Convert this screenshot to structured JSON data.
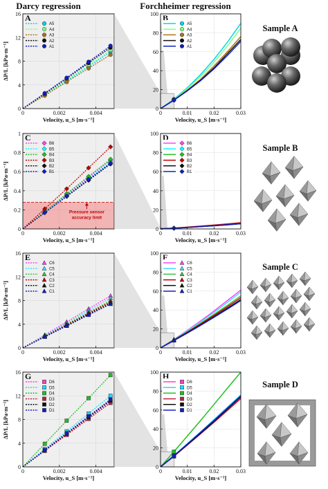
{
  "figure": {
    "col_titles": [
      "Darcy regression",
      "Forchheimer regression"
    ]
  },
  "chart_data": [
    {
      "id": "A",
      "type": "line",
      "panel_label": "A",
      "xlabel": "Velocity, u_S [m·s⁻¹]",
      "ylabel": "ΔP/L [kPa·m⁻¹]",
      "xlim": [
        0,
        0.005
      ],
      "ylim": [
        0,
        16
      ],
      "xticks": [
        0,
        0.002,
        0.004
      ],
      "xtick_labels": [
        "0",
        "0.002",
        "0.004"
      ],
      "yticks": [
        0,
        4,
        8,
        12,
        16
      ],
      "legend": [
        "A5",
        "A4",
        "A3",
        "A2",
        "A1"
      ],
      "x": [
        0,
        0.0012,
        0.0024,
        0.0036,
        0.0048
      ],
      "series": [
        {
          "name": "A5",
          "values": [
            0,
            2.3,
            4.7,
            7.1,
            9.6
          ]
        },
        {
          "name": "A4",
          "values": [
            0,
            2.4,
            4.9,
            7.3,
            9.9
          ]
        },
        {
          "name": "A3",
          "values": [
            0,
            2.2,
            4.5,
            6.8,
            9.1
          ]
        },
        {
          "name": "A2",
          "values": [
            0,
            2.5,
            5.1,
            7.7,
            10.3
          ]
        },
        {
          "name": "A1",
          "values": [
            0,
            2.6,
            5.2,
            7.9,
            10.6
          ]
        }
      ]
    },
    {
      "id": "B",
      "type": "line",
      "panel_label": "B",
      "xlabel": "Velocity, u_S [m·s⁻¹]",
      "ylabel": "",
      "xlim": [
        0,
        0.03
      ],
      "ylim": [
        0,
        100
      ],
      "xticks": [
        0,
        0.01,
        0.02,
        0.03
      ],
      "xtick_labels": [
        "0",
        "0.01",
        "0.02",
        "0.03"
      ],
      "yticks": [
        0,
        20,
        40,
        60,
        80,
        100
      ],
      "legend": [
        "A5",
        "A4",
        "A3",
        "A2",
        "A1"
      ],
      "x": [
        0,
        0.005,
        0.01,
        0.015,
        0.02,
        0.025,
        0.03
      ],
      "series": [
        {
          "name": "A5",
          "values": [
            0,
            10,
            22,
            36,
            52,
            70,
            90
          ]
        },
        {
          "name": "A4",
          "values": [
            0,
            9.5,
            21,
            34,
            49,
            66,
            85
          ]
        },
        {
          "name": "A3",
          "values": [
            0,
            9,
            19.5,
            31,
            45,
            60,
            76
          ]
        },
        {
          "name": "A2",
          "values": [
            0,
            9,
            19,
            30,
            43,
            58,
            73
          ]
        },
        {
          "name": "A1",
          "values": [
            0,
            8.8,
            18.7,
            29.5,
            42,
            56,
            71
          ]
        }
      ]
    },
    {
      "id": "C",
      "type": "line",
      "panel_label": "C",
      "xlabel": "Velocity, u_S [m·s⁻¹]",
      "ylabel": "ΔP/L [kPa·m⁻¹]",
      "xlim": [
        0,
        0.005
      ],
      "ylim": [
        0,
        1.0
      ],
      "xticks": [
        0,
        0.002,
        0.004
      ],
      "xtick_labels": [
        "0",
        "0.002",
        "0.004"
      ],
      "yticks": [
        0,
        0.2,
        0.4,
        0.6,
        0.8,
        1.0
      ],
      "legend": [
        "B6",
        "B5",
        "B4",
        "B3",
        "B2",
        "B1"
      ],
      "x": [
        0,
        0.0012,
        0.0024,
        0.0036,
        0.0048
      ],
      "series": [
        {
          "name": "B6",
          "values": [
            0,
            0.18,
            0.36,
            0.54,
            0.72
          ]
        },
        {
          "name": "B5",
          "values": [
            0,
            0.175,
            0.35,
            0.525,
            0.7
          ]
        },
        {
          "name": "B4",
          "values": [
            0,
            0.18,
            0.37,
            0.55,
            0.73
          ]
        },
        {
          "name": "B3",
          "values": [
            0,
            0.21,
            0.42,
            0.64,
            0.86
          ]
        },
        {
          "name": "B2",
          "values": [
            0,
            0.17,
            0.34,
            0.51,
            0.68
          ]
        },
        {
          "name": "B1",
          "values": [
            0,
            0.17,
            0.345,
            0.52,
            0.69
          ]
        }
      ],
      "annotation": [
        "Pressure sensor",
        "accuracy limit"
      ],
      "shaded_band": [
        0,
        0.28
      ]
    },
    {
      "id": "D",
      "type": "line",
      "panel_label": "D",
      "xlabel": "Velocity, u_S [m·s⁻¹]",
      "ylabel": "",
      "xlim": [
        0,
        0.03
      ],
      "ylim": [
        0,
        100
      ],
      "xticks": [
        0,
        0.01,
        0.02,
        0.03
      ],
      "xtick_labels": [
        "0",
        "0.01",
        "0.02",
        "0.03"
      ],
      "yticks": [
        0,
        20,
        40,
        60,
        80,
        100
      ],
      "legend": [
        "B6",
        "B5",
        "B4",
        "B3",
        "B2",
        "B1"
      ],
      "x": [
        0,
        0.005,
        0.01,
        0.015,
        0.02,
        0.025,
        0.03
      ],
      "series": [
        {
          "name": "B6",
          "values": [
            0,
            0.8,
            1.7,
            2.6,
            3.6,
            4.7,
            5.9
          ]
        },
        {
          "name": "B5",
          "values": [
            0,
            0.8,
            1.6,
            2.5,
            3.5,
            4.6,
            5.8
          ]
        },
        {
          "name": "B4",
          "values": [
            0,
            0.8,
            1.7,
            2.6,
            3.6,
            4.7,
            5.9
          ]
        },
        {
          "name": "B3",
          "values": [
            0,
            0.9,
            1.9,
            3.0,
            4.1,
            5.3,
            6.5
          ]
        },
        {
          "name": "B2",
          "values": [
            0,
            0.7,
            1.5,
            2.4,
            3.3,
            4.3,
            5.4
          ]
        },
        {
          "name": "B1",
          "values": [
            0,
            0.7,
            1.5,
            2.4,
            3.4,
            4.4,
            5.5
          ]
        }
      ]
    },
    {
      "id": "E",
      "type": "line",
      "panel_label": "E",
      "xlabel": "Velocity, u_S [m·s⁻¹]",
      "ylabel": "ΔP/L [kPa·m⁻¹]",
      "xlim": [
        0,
        0.005
      ],
      "ylim": [
        0,
        16
      ],
      "xticks": [
        0,
        0.002,
        0.004
      ],
      "xtick_labels": [
        "0",
        "0.002",
        "0.004"
      ],
      "yticks": [
        0,
        4,
        8,
        12,
        16
      ],
      "legend": [
        "C6",
        "C5",
        "C4",
        "C3",
        "C2",
        "C1"
      ],
      "x": [
        0,
        0.0012,
        0.0024,
        0.0036,
        0.0048
      ],
      "series": [
        {
          "name": "C6",
          "values": [
            0,
            2.2,
            4.4,
            6.6,
            8.8
          ]
        },
        {
          "name": "C5",
          "values": [
            0,
            2.1,
            4.2,
            6.3,
            8.4
          ]
        },
        {
          "name": "C4",
          "values": [
            0,
            2.0,
            4.0,
            6.0,
            8.0
          ]
        },
        {
          "name": "C3",
          "values": [
            0,
            1.95,
            3.9,
            5.85,
            7.8
          ]
        },
        {
          "name": "C2",
          "values": [
            0,
            1.9,
            3.8,
            5.7,
            7.6
          ]
        },
        {
          "name": "C1",
          "values": [
            0,
            1.85,
            3.7,
            5.55,
            7.4
          ]
        }
      ]
    },
    {
      "id": "F",
      "type": "line",
      "panel_label": "F",
      "xlabel": "Velocity, u_S [m·s⁻¹]",
      "ylabel": "",
      "xlim": [
        0,
        0.03
      ],
      "ylim": [
        0,
        100
      ],
      "xticks": [
        0,
        0.01,
        0.02,
        0.03
      ],
      "xtick_labels": [
        "0",
        "0.01",
        "0.02",
        "0.03"
      ],
      "yticks": [
        0,
        20,
        40,
        60,
        80,
        100
      ],
      "legend": [
        "C6",
        "C5",
        "C4",
        "C3",
        "C2",
        "C1"
      ],
      "x": [
        0,
        0.005,
        0.01,
        0.015,
        0.02,
        0.025,
        0.03
      ],
      "series": [
        {
          "name": "C6",
          "values": [
            0,
            9,
            18.5,
            28.5,
            39,
            50,
            61
          ]
        },
        {
          "name": "C5",
          "values": [
            0,
            8.8,
            18,
            27.5,
            37.5,
            48,
            59
          ]
        },
        {
          "name": "C4",
          "values": [
            0,
            8.4,
            17,
            26,
            35.5,
            45,
            55
          ]
        },
        {
          "name": "C3",
          "values": [
            0,
            8.2,
            16.6,
            25.3,
            34.3,
            43.5,
            53
          ]
        },
        {
          "name": "C2",
          "values": [
            0,
            7.9,
            16,
            24.3,
            33,
            42,
            51
          ]
        },
        {
          "name": "C1",
          "values": [
            0,
            7.7,
            15.6,
            23.8,
            32.3,
            41,
            50
          ]
        }
      ]
    },
    {
      "id": "G",
      "type": "line",
      "panel_label": "G",
      "xlabel": "Velocity, u_S [m·s⁻¹]",
      "ylabel": "ΔP/L [kPa·m⁻¹]",
      "xlim": [
        0,
        0.005
      ],
      "ylim": [
        0,
        16
      ],
      "xticks": [
        0,
        0.002,
        0.004
      ],
      "xtick_labels": [
        "0",
        "0.002",
        "0.004"
      ],
      "yticks": [
        0,
        4,
        8,
        12,
        16
      ],
      "legend": [
        "D6",
        "D5",
        "D4",
        "D3",
        "D2",
        "D1"
      ],
      "x": [
        0,
        0.0012,
        0.0024,
        0.0036,
        0.0048
      ],
      "series": [
        {
          "name": "D6",
          "values": [
            0,
            2.75,
            5.5,
            8.3,
            11.0
          ]
        },
        {
          "name": "D5",
          "values": [
            0,
            3.0,
            6.0,
            9.0,
            12.0
          ]
        },
        {
          "name": "D4",
          "values": [
            0,
            3.9,
            7.8,
            11.6,
            15.5
          ]
        },
        {
          "name": "D3",
          "values": [
            0,
            2.7,
            5.4,
            8.1,
            10.8
          ]
        },
        {
          "name": "D2",
          "values": [
            0,
            2.8,
            5.6,
            8.4,
            11.2
          ]
        },
        {
          "name": "D1",
          "values": [
            0,
            2.85,
            5.7,
            8.55,
            11.4
          ]
        }
      ]
    },
    {
      "id": "H",
      "type": "line",
      "panel_label": "H",
      "xlabel": "Velocity, u_S [m·s⁻¹]",
      "ylabel": "",
      "xlim": [
        0,
        0.03
      ],
      "ylim": [
        0,
        100
      ],
      "xticks": [
        0,
        0.01,
        0.02,
        0.03
      ],
      "xtick_labels": [
        "0",
        "0.01",
        "0.02",
        "0.03"
      ],
      "yticks": [
        0,
        20,
        40,
        60,
        80,
        100
      ],
      "legend": [
        "D6",
        "D5",
        "D4",
        "D3",
        "D2",
        "D1"
      ],
      "x": [
        0,
        0.005,
        0.01,
        0.015,
        0.02,
        0.025,
        0.03
      ],
      "series": [
        {
          "name": "D6",
          "values": [
            0,
            11,
            23,
            35,
            47.5,
            60,
            73
          ]
        },
        {
          "name": "D5",
          "values": [
            0,
            12,
            24.5,
            37,
            50,
            63,
            76
          ]
        },
        {
          "name": "D4",
          "values": [
            0,
            16,
            32.5,
            49,
            66,
            83,
            100
          ]
        },
        {
          "name": "D3",
          "values": [
            0,
            11.3,
            23,
            35,
            47,
            59.5,
            72
          ]
        },
        {
          "name": "D2",
          "values": [
            0,
            11.5,
            23.5,
            35.5,
            48,
            61,
            74
          ]
        },
        {
          "name": "D1",
          "values": [
            0,
            11.7,
            24,
            36.5,
            49,
            62,
            75
          ]
        }
      ]
    }
  ],
  "samples": [
    {
      "title": "Sample A",
      "shape": "spheres"
    },
    {
      "title": "Sample B",
      "shape": "octahedra-lattice"
    },
    {
      "title": "Sample C",
      "shape": "octahedra-dense-lattice"
    },
    {
      "title": "Sample D",
      "shape": "octahedra-cage"
    }
  ],
  "colors": {
    "A5": "#00d8e8",
    "A4": "#80ff80",
    "A3": "#b07018",
    "A2": "#101010",
    "A1": "#1020c0",
    "B6": "#ff40ff",
    "B5": "#00ffff",
    "B4": "#20c020",
    "B3": "#c00000",
    "B2": "#101010",
    "B1": "#1020c0",
    "C6": "#ff40ff",
    "C5": "#40e0ff",
    "C4": "#40c040",
    "C3": "#c00000",
    "C2": "#101010",
    "C1": "#1020c0",
    "D6": "#ff40c0",
    "D5": "#20d8ff",
    "D4": "#20c020",
    "D3": "#c02040",
    "D2": "#101010",
    "D1": "#1020c0",
    "panel_bg": "#efefef",
    "sensor_band": "#f4a0a0"
  },
  "markers": {
    "A": "circle",
    "B": "diamond",
    "C": "triangle",
    "D": "square"
  }
}
